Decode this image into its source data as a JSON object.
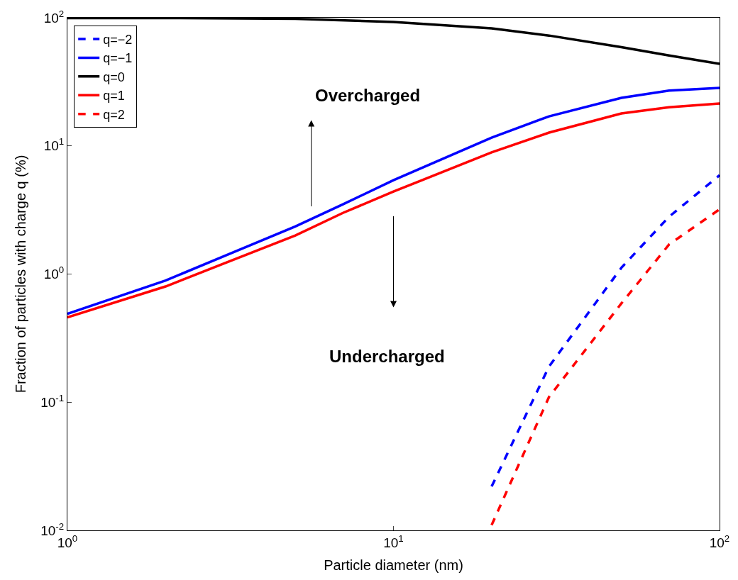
{
  "chart_data": {
    "type": "line",
    "xlabel": "Particle diameter (nm)",
    "ylabel": "Fraction of particles with charge q (%)",
    "log": "xy",
    "legend": "top left",
    "line_style": "solid",
    "xlim": [
      1,
      100
    ],
    "ylim": [
      0.01,
      100
    ],
    "xticks": [
      {
        "value": 1,
        "label": "10$^{0}$"
      },
      {
        "value": 10,
        "label": "10$^{1}$"
      },
      {
        "value": 100,
        "label": "10$^{2}$"
      }
    ],
    "yticks": [
      {
        "value": 0.01,
        "label": "10$^{-2}$"
      },
      {
        "value": 0.1,
        "label": "10$^{-1}$"
      },
      {
        "value": 1,
        "label": "10$^{0}$"
      },
      {
        "value": 10,
        "label": "10$^{1}$"
      },
      {
        "value": 100,
        "label": "10$^{2}$"
      }
    ],
    "annotations": [
      "Overcharged",
      "Undercharged"
    ],
    "series": [
      {
        "name": "q=−2",
        "color": "#0000ff",
        "line_style": "dashed",
        "x": [
          20,
          30,
          50,
          70,
          100
        ],
        "values": [
          0.022,
          0.19,
          1.12,
          2.8,
          5.9
        ]
      },
      {
        "name": "q=−1",
        "color": "#0000ff",
        "x": [
          1,
          2,
          3,
          5,
          7,
          10,
          20,
          30,
          50,
          70,
          100
        ],
        "values": [
          0.49,
          0.89,
          1.37,
          2.35,
          3.5,
          5.4,
          11.6,
          17,
          23.7,
          27,
          28.3
        ]
      },
      {
        "name": "q=0",
        "color": "#000000",
        "x": [
          1,
          2,
          5,
          10,
          20,
          30,
          50,
          70,
          100
        ],
        "values": [
          99.5,
          99.4,
          98,
          92.7,
          82.6,
          72.6,
          59,
          50.8,
          43.7
        ]
      },
      {
        "name": "q=1",
        "color": "#ff0000",
        "x": [
          1,
          2,
          3,
          5,
          7,
          10,
          20,
          30,
          50,
          70,
          100
        ],
        "values": [
          0.46,
          0.8,
          1.2,
          2.0,
          3.0,
          4.4,
          8.9,
          12.7,
          17.9,
          20,
          21.4
        ]
      },
      {
        "name": "q=2",
        "color": "#ff0000",
        "line_style": "dashed",
        "x": [
          20,
          30,
          50,
          70,
          100
        ],
        "values": [
          0.011,
          0.11,
          0.59,
          1.7,
          3.2
        ]
      }
    ]
  }
}
